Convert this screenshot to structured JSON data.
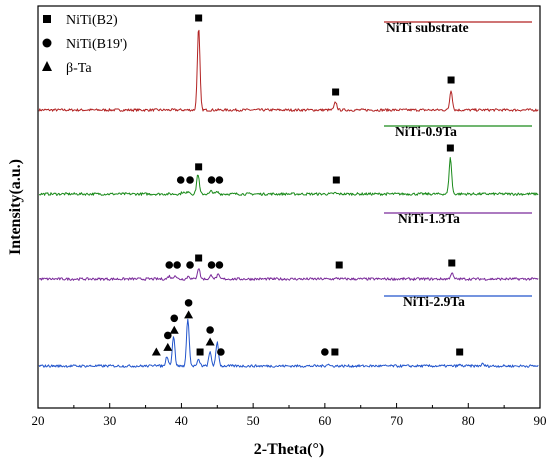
{
  "chart_data": {
    "type": "line",
    "xlabel": "2-Theta(°)",
    "ylabel": "Intensity(a.u.)",
    "xlim": [
      20,
      90
    ],
    "xticks": [
      20,
      30,
      40,
      50,
      60,
      70,
      80,
      90
    ],
    "y_tick_labels": "none",
    "legend": {
      "placement": "top-left",
      "items": [
        {
          "label": "NiTi(B2)",
          "marker": "square"
        },
        {
          "label": "NiTi(B19')",
          "marker": "circle"
        },
        {
          "label": "β-Ta",
          "marker": "triangle"
        }
      ]
    },
    "series": [
      {
        "name": "NiTi substrate",
        "color": "#b22222",
        "peaks": [
          {
            "x": 42.4,
            "height": 82
          },
          {
            "x": 61.5,
            "height": 8
          },
          {
            "x": 77.6,
            "height": 20
          }
        ],
        "markers": [
          {
            "x": 42.4,
            "type": "square"
          },
          {
            "x": 61.5,
            "type": "square"
          },
          {
            "x": 77.6,
            "type": "square"
          }
        ]
      },
      {
        "name": "NiTi-0.9Ta",
        "color": "#1a8a1a",
        "peaks": [
          {
            "x": 40.2,
            "height": 2
          },
          {
            "x": 41.0,
            "height": 3
          },
          {
            "x": 42.3,
            "height": 20
          },
          {
            "x": 44.2,
            "height": 3
          },
          {
            "x": 45.0,
            "height": 2
          },
          {
            "x": 61.4,
            "height": 1
          },
          {
            "x": 77.5,
            "height": 36
          }
        ],
        "markers": [
          {
            "x": 39.9,
            "type": "circle"
          },
          {
            "x": 41.2,
            "type": "circle"
          },
          {
            "x": 42.4,
            "type": "square"
          },
          {
            "x": 44.2,
            "type": "circle"
          },
          {
            "x": 45.3,
            "type": "circle"
          },
          {
            "x": 61.6,
            "type": "square"
          },
          {
            "x": 77.5,
            "type": "square"
          }
        ]
      },
      {
        "name": "NiTi-1.3Ta",
        "color": "#7a2a9a",
        "peaks": [
          {
            "x": 38.3,
            "height": 3
          },
          {
            "x": 39.1,
            "height": 4
          },
          {
            "x": 41.0,
            "height": 3
          },
          {
            "x": 42.4,
            "height": 11
          },
          {
            "x": 44.2,
            "height": 4
          },
          {
            "x": 45.1,
            "height": 4
          },
          {
            "x": 61.8,
            "height": 1
          },
          {
            "x": 77.7,
            "height": 6
          }
        ],
        "markers": [
          {
            "x": 38.3,
            "type": "circle"
          },
          {
            "x": 39.4,
            "type": "circle"
          },
          {
            "x": 41.2,
            "type": "circle"
          },
          {
            "x": 42.4,
            "type": "square"
          },
          {
            "x": 44.2,
            "type": "circle"
          },
          {
            "x": 45.3,
            "type": "circle"
          },
          {
            "x": 62.0,
            "type": "square"
          },
          {
            "x": 77.7,
            "type": "square"
          }
        ]
      },
      {
        "name": "NiTi-2.9Ta",
        "color": "#2255cc",
        "peaks": [
          {
            "x": 36.3,
            "height": 2
          },
          {
            "x": 38.0,
            "height": 10
          },
          {
            "x": 38.9,
            "height": 30
          },
          {
            "x": 40.9,
            "height": 48
          },
          {
            "x": 42.4,
            "height": 6
          },
          {
            "x": 44.0,
            "height": 14
          },
          {
            "x": 45.0,
            "height": 24
          },
          {
            "x": 60.4,
            "height": 2
          },
          {
            "x": 78.8,
            "height": 1
          },
          {
            "x": 82.0,
            "height": 2
          }
        ],
        "markers": [
          {
            "x": 36.5,
            "type": "triangle"
          },
          {
            "x": 38.1,
            "type": "triangle"
          },
          {
            "x": 38.1,
            "type": "circle"
          },
          {
            "x": 39.0,
            "type": "triangle"
          },
          {
            "x": 39.0,
            "type": "circle"
          },
          {
            "x": 41.0,
            "type": "triangle"
          },
          {
            "x": 41.0,
            "type": "circle"
          },
          {
            "x": 42.6,
            "type": "square"
          },
          {
            "x": 44.0,
            "type": "triangle"
          },
          {
            "x": 44.0,
            "type": "circle"
          },
          {
            "x": 45.5,
            "type": "circle"
          },
          {
            "x": 60.0,
            "type": "circle"
          },
          {
            "x": 61.4,
            "type": "square"
          },
          {
            "x": 78.8,
            "type": "square"
          }
        ]
      }
    ]
  }
}
